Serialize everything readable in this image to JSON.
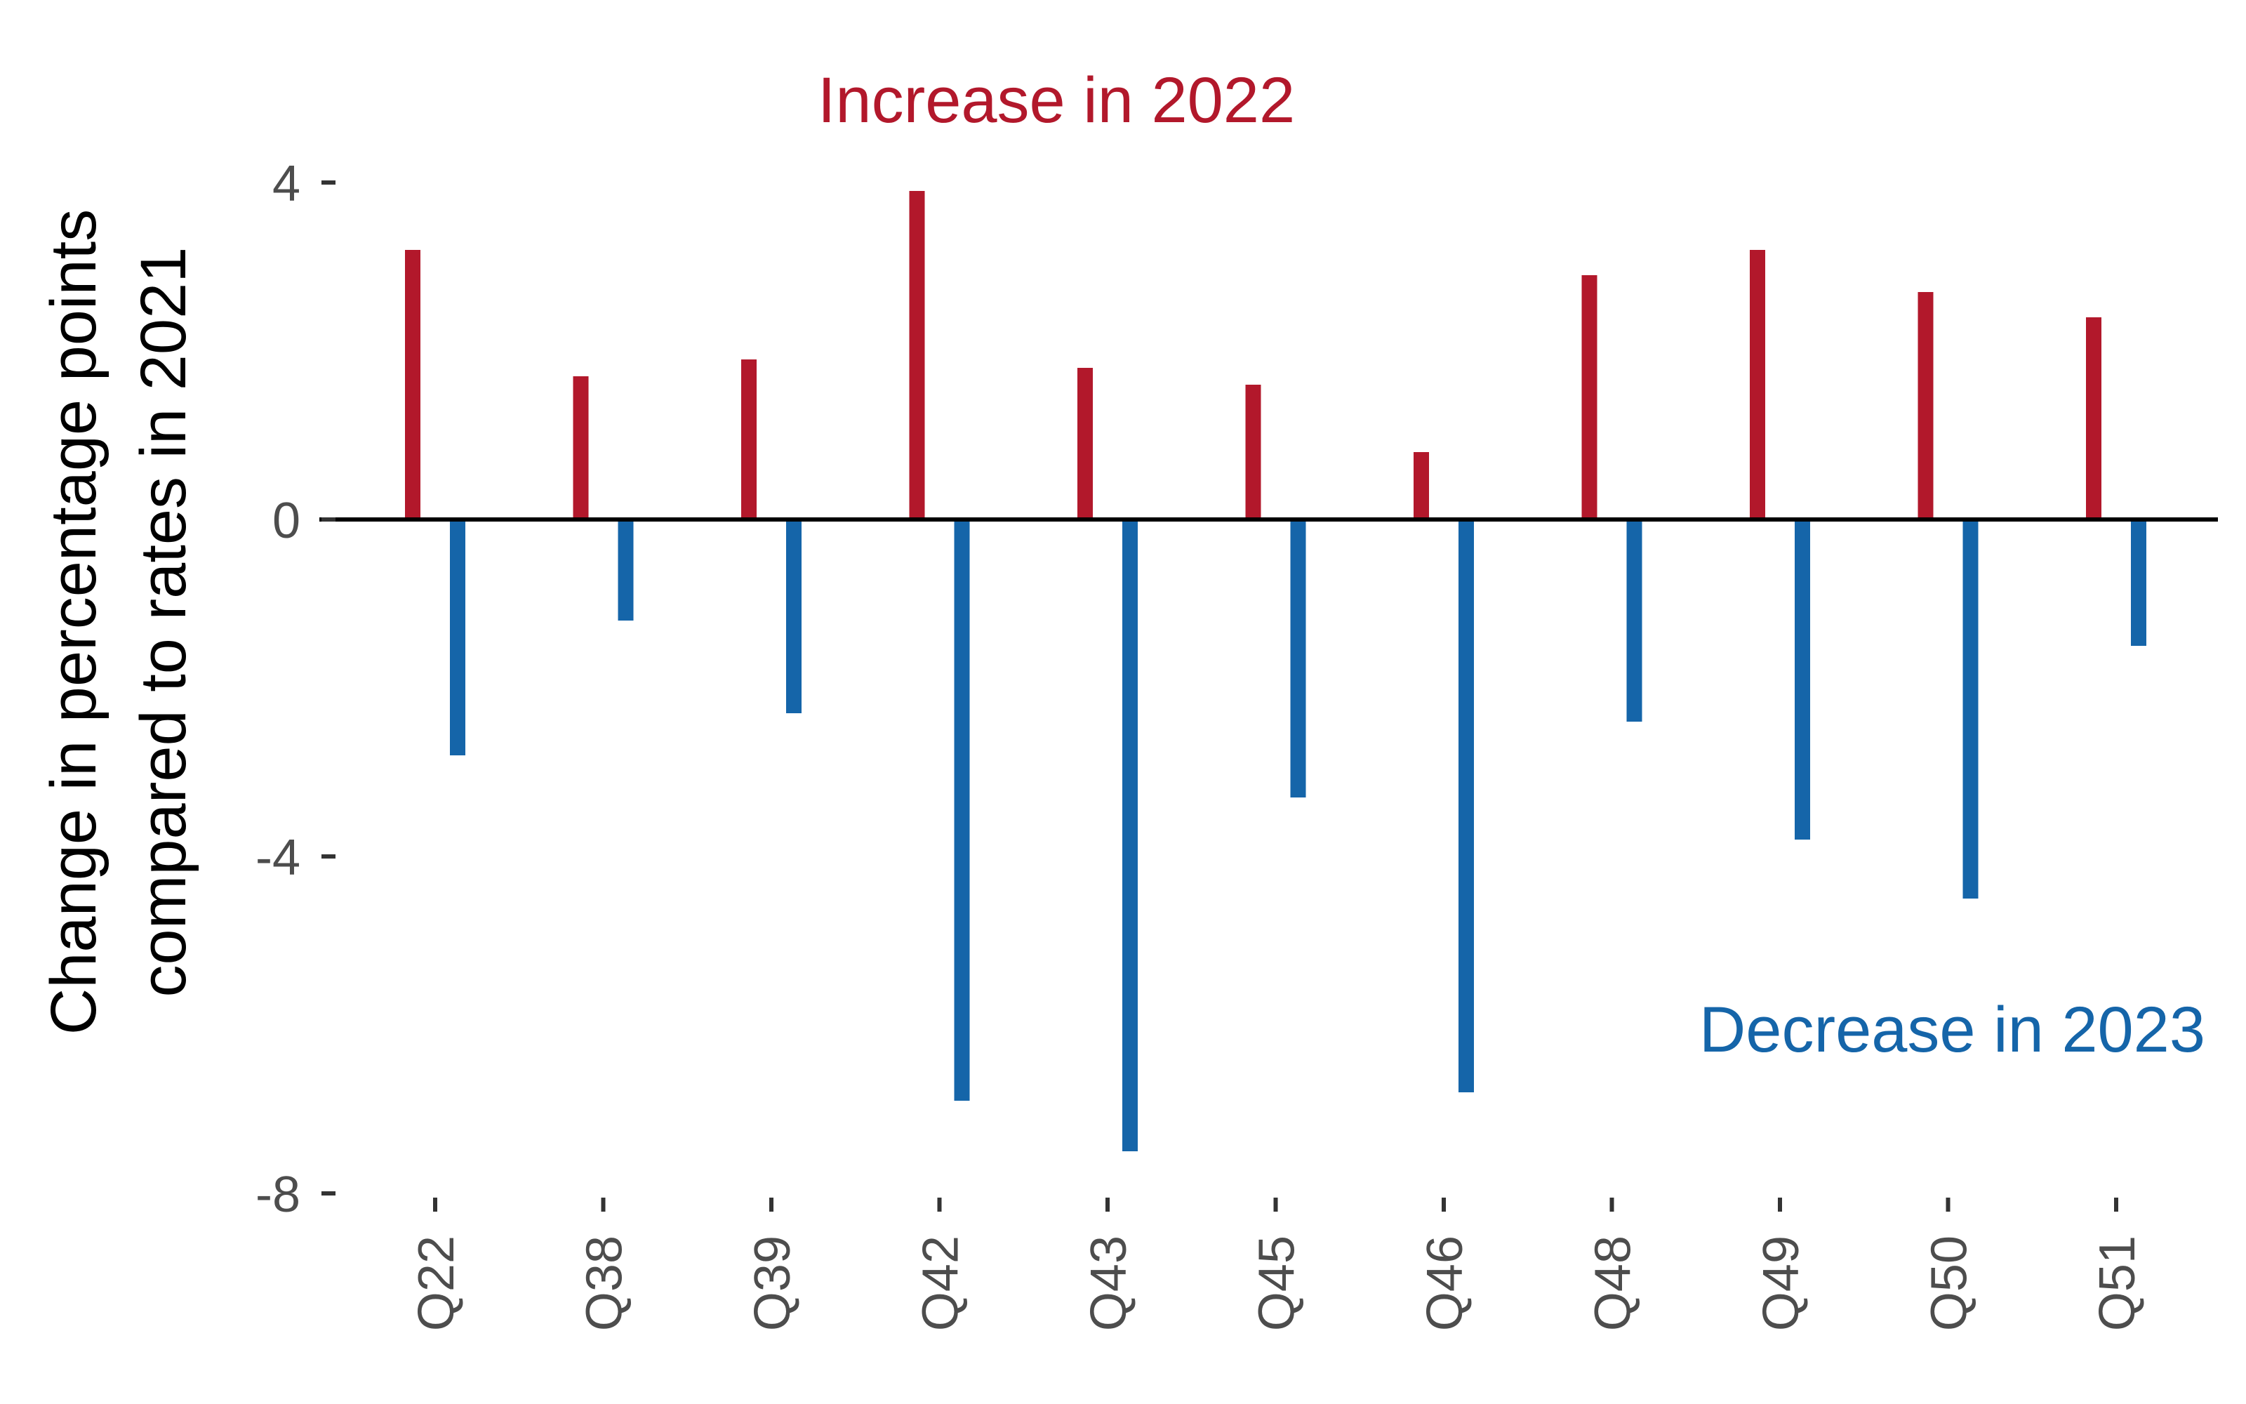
{
  "chart_data": {
    "type": "bar",
    "categories": [
      "Q22",
      "Q38",
      "Q39",
      "Q42",
      "Q43",
      "Q45",
      "Q46",
      "Q48",
      "Q49",
      "Q50",
      "Q51"
    ],
    "series": [
      {
        "color": "#b2182b",
        "values": [
          3.2,
          1.7,
          1.9,
          3.9,
          1.8,
          1.6,
          0.8,
          2.9,
          3.2,
          2.7,
          2.4
        ]
      },
      {
        "color": "#1565a9",
        "values": [
          -2.8,
          -1.2,
          -2.3,
          -6.9,
          -7.5,
          -3.3,
          -6.8,
          -2.4,
          -3.8,
          -4.5,
          -1.5
        ]
      }
    ],
    "ylabel_lines": [
      "Change in percentage points",
      "compared to rates in 2021"
    ],
    "y_ticks": [
      {
        "value": 4,
        "label": "4"
      },
      {
        "value": 0,
        "label": "0"
      },
      {
        "value": -4,
        "label": "-4"
      },
      {
        "value": -8,
        "label": "-8"
      }
    ],
    "ylim": [
      -8,
      4
    ],
    "annotations": [
      {
        "text": "Increase in 2022",
        "color": "#b2182b",
        "position": "top-center"
      },
      {
        "text": "Decrease in 2023",
        "color": "#1565a9",
        "position": "bottom-right"
      }
    ],
    "grid": false,
    "zero_line": true
  }
}
